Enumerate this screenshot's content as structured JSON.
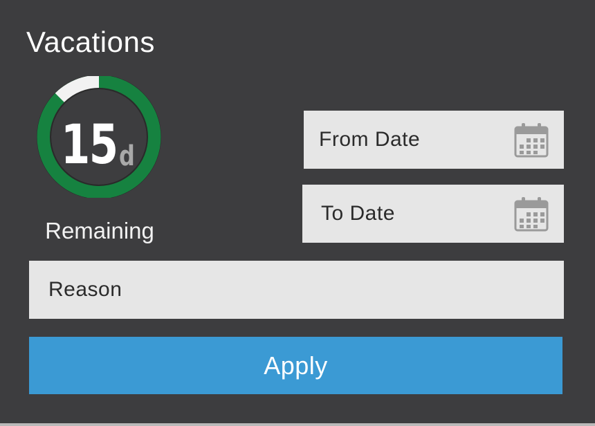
{
  "app": {
    "title": "Vacations"
  },
  "balance": {
    "value": "15",
    "unit": "d",
    "label": "Remaining",
    "used_fraction": 0.125
  },
  "form": {
    "from_date": {
      "placeholder": "From Date",
      "icon": "calendar-icon"
    },
    "to_date": {
      "placeholder": "To Date",
      "icon": "calendar-icon"
    },
    "reason": {
      "placeholder": "Reason"
    },
    "apply_label": "Apply"
  },
  "colors": {
    "background": "#3d3d3f",
    "gauge_remaining": "#168240",
    "gauge_used": "#f2f2f2",
    "field_background": "#e6e6e6",
    "accent": "#3b9ad4"
  }
}
